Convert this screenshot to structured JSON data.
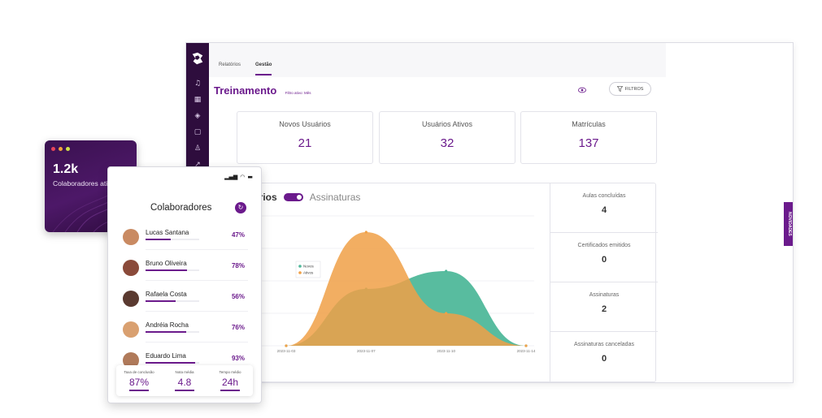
{
  "tabs": [
    {
      "label": "Relatórios",
      "active": false
    },
    {
      "label": "Gestão",
      "active": true
    }
  ],
  "rail_icons": [
    "bell-icon",
    "grid-icon",
    "cube-icon",
    "book-icon",
    "users-icon",
    "trend-icon"
  ],
  "header": {
    "title": "Treinamento",
    "filter_note": "Filtro ativo: Mês",
    "filter_button": "FILTROS"
  },
  "side_tab": "NOVIDADES",
  "stats": [
    {
      "label": "Novos Usuários",
      "value": "21"
    },
    {
      "label": "Usuários Ativos",
      "value": "32"
    },
    {
      "label": "Matrículas",
      "value": "137"
    }
  ],
  "chart_header": {
    "left": "ários",
    "right": "Assinaturas"
  },
  "metrics": [
    {
      "label": "Aulas concluídas",
      "value": "4"
    },
    {
      "label": "Certificados emitidos",
      "value": "0"
    },
    {
      "label": "Assinaturas",
      "value": "2"
    },
    {
      "label": "Assinaturas canceladas",
      "value": "0"
    }
  ],
  "chart_data": {
    "type": "area",
    "x": [
      "2023-11-03",
      "2023-11-07",
      "2023-11-10",
      "2023-11-14"
    ],
    "series": [
      {
        "name": "Novos",
        "color": "#4fb89a",
        "values": [
          0,
          3.5,
          4.6,
          0
        ]
      },
      {
        "name": "Ativos",
        "color": "#f0a046",
        "values": [
          0,
          7,
          2,
          0
        ]
      }
    ],
    "legend": "top-left",
    "grid": true
  },
  "purple_card": {
    "value": "1.2k",
    "label": "Colaboradores ativos",
    "dot_colors": [
      "#e8455a",
      "#f2a33a",
      "#cfe34a"
    ]
  },
  "phone": {
    "status": {
      "signal": "▂▄▆",
      "wifi": "◠",
      "battery": "▬"
    },
    "title": "Colaboradores",
    "people": [
      {
        "name": "Lucas Santana",
        "percent": "47%",
        "progress": 0.47,
        "avatar_color": "#c98a62"
      },
      {
        "name": "Bruno Oliveira",
        "percent": "78%",
        "progress": 0.78,
        "avatar_color": "#8a4a3a"
      },
      {
        "name": "Rafaela Costa",
        "percent": "56%",
        "progress": 0.56,
        "avatar_color": "#5a3a30"
      },
      {
        "name": "Andréia Rocha",
        "percent": "76%",
        "progress": 0.76,
        "avatar_color": "#d9a070"
      },
      {
        "name": "Eduardo Lima",
        "percent": "93%",
        "progress": 0.93,
        "avatar_color": "#b07a5a"
      }
    ],
    "summary": [
      {
        "label": "Taxa de conclusão",
        "value": "87%"
      },
      {
        "label": "Nota média",
        "value": "4.8"
      },
      {
        "label": "Tempo médio",
        "value": "24h"
      }
    ]
  }
}
